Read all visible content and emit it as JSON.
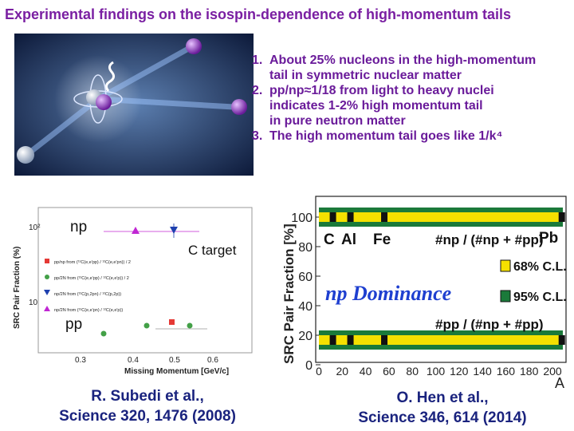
{
  "title": "Experimental findings on the isospin-dependence of high-momentum tails",
  "findings": [
    {
      "num": "1.",
      "text": "About 25% nucleons in the high-momentum\ntail in symmetric nuclear matter"
    },
    {
      "num": "2.",
      "text": "pp/np≈1/18 from light to heavy nuclei\nindicates 1-2% high momentum tail\nin pure neutron matter"
    },
    {
      "num": "3.",
      "text": "The high momentum tail goes like 1/k⁴"
    }
  ],
  "left_plot": {
    "ylabel": "SRC Pair Fraction (%)",
    "xlabel": "Missing Momentum [GeV/c]",
    "yticks": [
      "10²",
      "10"
    ],
    "xticks": [
      "0.3",
      "0.4",
      "0.5",
      "0.6"
    ],
    "np_label": "np",
    "pp_label": "pp",
    "target_label": "C target",
    "legend": [
      {
        "text": "pp/np from (¹²C(e,e'pp) / ¹²C(e,e'pn)) / 2",
        "color": "#e53935",
        "marker": "square"
      },
      {
        "text": "pp/2N from (¹²C(e,e'pp) / ¹²C(e,e'p)) / 2",
        "color": "#43a047",
        "marker": "circle"
      },
      {
        "text": "np/2N from (¹²C(p,2pn) / ¹²C(p,2p))",
        "color": "#1e40af",
        "marker": "triangle-down"
      },
      {
        "text": "np/2N from (¹²C(e,e'pn) / ¹²C(e,e'p))",
        "color": "#c026d3",
        "marker": "triangle-up"
      }
    ]
  },
  "right_plot": {
    "ylabel": "SRC Pair Fraction [%]",
    "xlabel": "A",
    "yticks": [
      "100",
      "80",
      "60",
      "40",
      "20",
      "0"
    ],
    "xticks": [
      "0",
      "20",
      "40",
      "60",
      "80",
      "100",
      "120",
      "140",
      "160",
      "180",
      "200"
    ],
    "nuclei": [
      "C",
      "Al",
      "Fe",
      "Pb"
    ],
    "np_formula": "#np / (#np + #pp)",
    "pp_formula": "#pp / (#np + #pp)",
    "cl68": "68% C.L.",
    "cl95": "95% C.L.",
    "dominance": "np Dominance",
    "colors": {
      "band95": "#1b7a3a",
      "band68": "#f5e000",
      "points": "#111111"
    }
  },
  "citations": {
    "left": {
      "line1": "R. Subedi et al.,",
      "line2": "Science 320, 1476 (2008)"
    },
    "right": {
      "line1": "O. Hen et al.,",
      "line2": "Science 346, 614 (2014)"
    }
  }
}
